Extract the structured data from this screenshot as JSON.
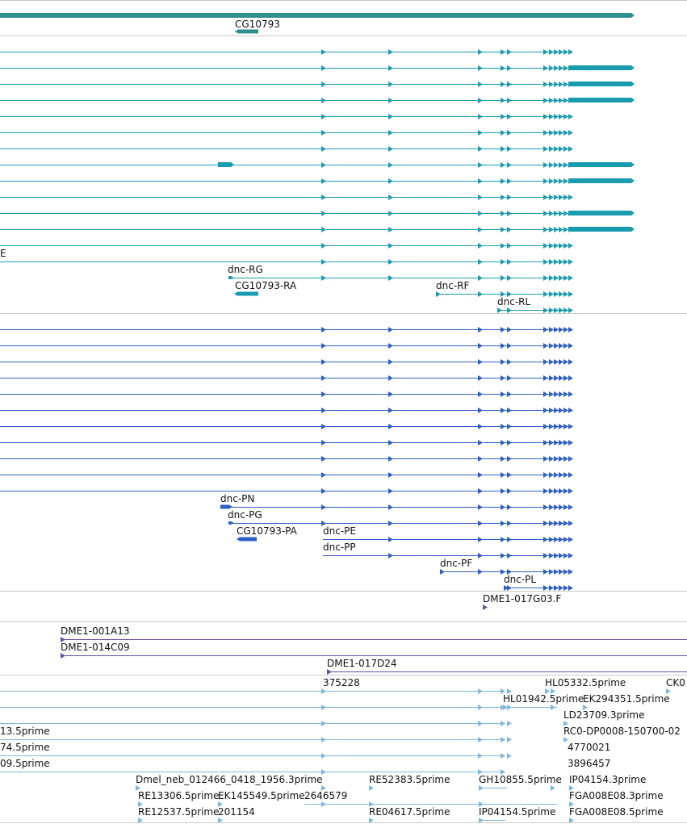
{
  "colors": {
    "gene": "#2f8f8f",
    "transcript": "#1a9cb0",
    "protein": "#2e5fc8",
    "clone": "#6a4ea0",
    "est": "#7fb8dc",
    "separator": "#c9c9c9"
  },
  "tracks": {
    "gene": {
      "label": "CG10793"
    },
    "transcripts": {
      "labels": [
        "dnc-RG",
        "CG10793-RA",
        "dnc-RF",
        "dnc-RL"
      ],
      "cut_label": "E"
    },
    "proteins": {
      "labels": [
        "dnc-PN",
        "dnc-PG",
        "CG10793-PA",
        "dnc-PE",
        "dnc-PP",
        "dnc-PF",
        "dnc-PL"
      ]
    },
    "clones": {
      "labels": [
        "DME1-017G03.F",
        "DME1-001A13",
        "DME1-014C09",
        "DME1-017D24"
      ]
    },
    "ests": {
      "labels": [
        "375228",
        "HL05332.5prime",
        "CK0",
        "HL01942.5prime",
        "EK294351.5prime",
        "LD23709.3prime",
        "13.5prime",
        "RC0-DP0008-150700-02",
        "74.5prime",
        "4770021",
        "09.5prime",
        "3896457",
        "Dmel_neb_012466_0418_1956.3prime",
        "RE52383.5prime",
        "GH10855.5prime",
        "IP04154.3prime",
        "RE13306.5prime",
        "EK145549.5prime",
        "2646579",
        "FGA008E08.3prime",
        "RE12537.5prime",
        "201154",
        "RE04617.5prime",
        "IP04154.5prime",
        "FGA008E08.5prime"
      ]
    }
  }
}
